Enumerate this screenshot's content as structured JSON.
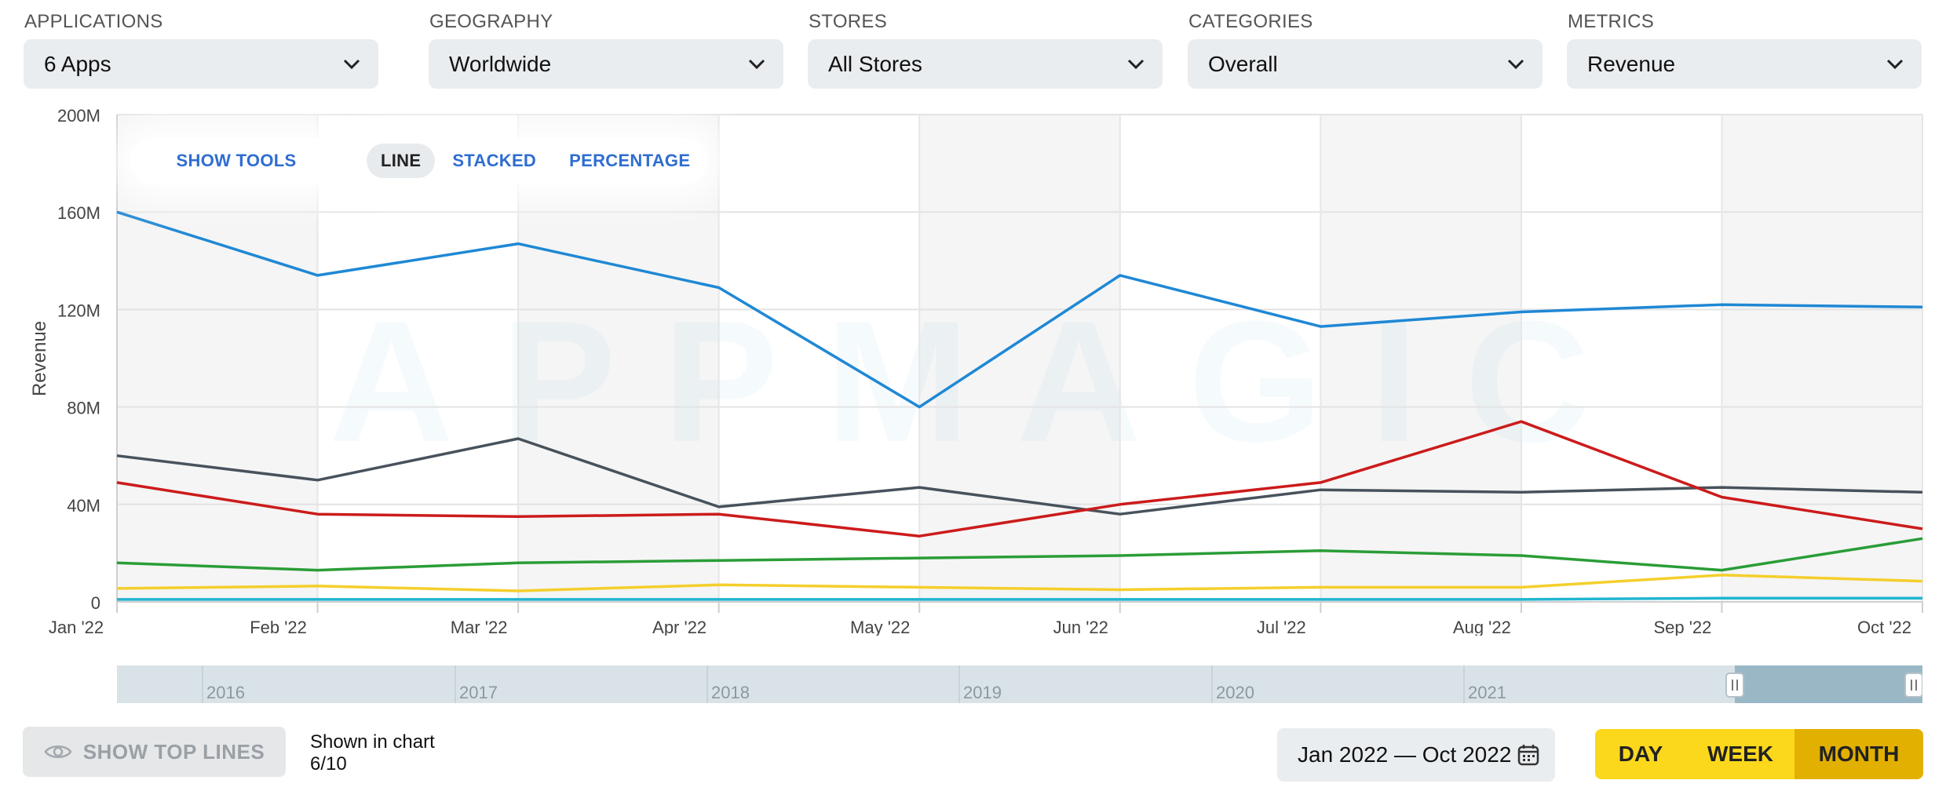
{
  "filters": [
    {
      "label": "APPLICATIONS",
      "value": "6 Apps"
    },
    {
      "label": "GEOGRAPHY",
      "value": "Worldwide"
    },
    {
      "label": "STORES",
      "value": "All Stores"
    },
    {
      "label": "CATEGORIES",
      "value": "Overall"
    },
    {
      "label": "METRICS",
      "value": "Revenue"
    }
  ],
  "toolbar": {
    "show_tools": "SHOW TOOLS",
    "modes": [
      "LINE",
      "STACKED",
      "PERCENTAGE"
    ],
    "active_mode": "LINE"
  },
  "watermark": "APPMAGIC",
  "overview_years": [
    "2016",
    "2017",
    "2018",
    "2019",
    "2020",
    "2021"
  ],
  "bottom": {
    "show_top_lines": "SHOW TOP LINES",
    "shown_label": "Shown in chart",
    "shown_count": "6/10",
    "date_range": "Jan 2022 — Oct 2022",
    "periods": [
      "DAY",
      "WEEK",
      "MONTH"
    ],
    "active_period": "MONTH"
  },
  "colors": {
    "blue": "#1f88d5",
    "dark": "#48525c",
    "red": "#cc1b1b",
    "green": "#2a9d37",
    "yellow": "#f4cf2c",
    "cyan": "#22b5d1",
    "accent_yellow": "#fbd81c",
    "active_period_bg": "#e2b000",
    "link_blue": "#2f6dd1"
  },
  "chart_data": {
    "type": "line",
    "x": [
      "Jan '22",
      "Feb '22",
      "Mar '22",
      "Apr '22",
      "May '22",
      "Jun '22",
      "Jul '22",
      "Aug '22",
      "Sep '22",
      "Oct '22"
    ],
    "ylabel": "Revenue",
    "ylim": [
      0,
      200000000
    ],
    "yticks": [
      "0",
      "40M",
      "80M",
      "120M",
      "160M",
      "200M"
    ],
    "grid": true,
    "series": [
      {
        "color": "#1f88d5",
        "values": [
          160000000,
          134000000,
          147000000,
          129000000,
          80000000,
          134000000,
          113000000,
          119000000,
          122000000,
          121000000
        ]
      },
      {
        "color": "#48525c",
        "values": [
          60000000,
          50000000,
          67000000,
          39000000,
          47000000,
          36000000,
          46000000,
          45000000,
          47000000,
          45000000
        ]
      },
      {
        "color": "#cc1b1b",
        "values": [
          49000000,
          36000000,
          35000000,
          36000000,
          27000000,
          40000000,
          49000000,
          74000000,
          43000000,
          30000000
        ]
      },
      {
        "color": "#2a9d37",
        "values": [
          16000000,
          13000000,
          16000000,
          17000000,
          18000000,
          19000000,
          21000000,
          19000000,
          13000000,
          26000000
        ]
      },
      {
        "color": "#f4cf2c",
        "values": [
          5500000,
          6500000,
          4500000,
          7000000,
          6000000,
          5000000,
          6000000,
          6000000,
          11000000,
          8500000
        ]
      },
      {
        "color": "#22b5d1",
        "values": [
          1000000,
          1000000,
          1000000,
          1000000,
          1000000,
          1000000,
          1000000,
          1000000,
          1500000,
          1500000
        ]
      }
    ]
  }
}
